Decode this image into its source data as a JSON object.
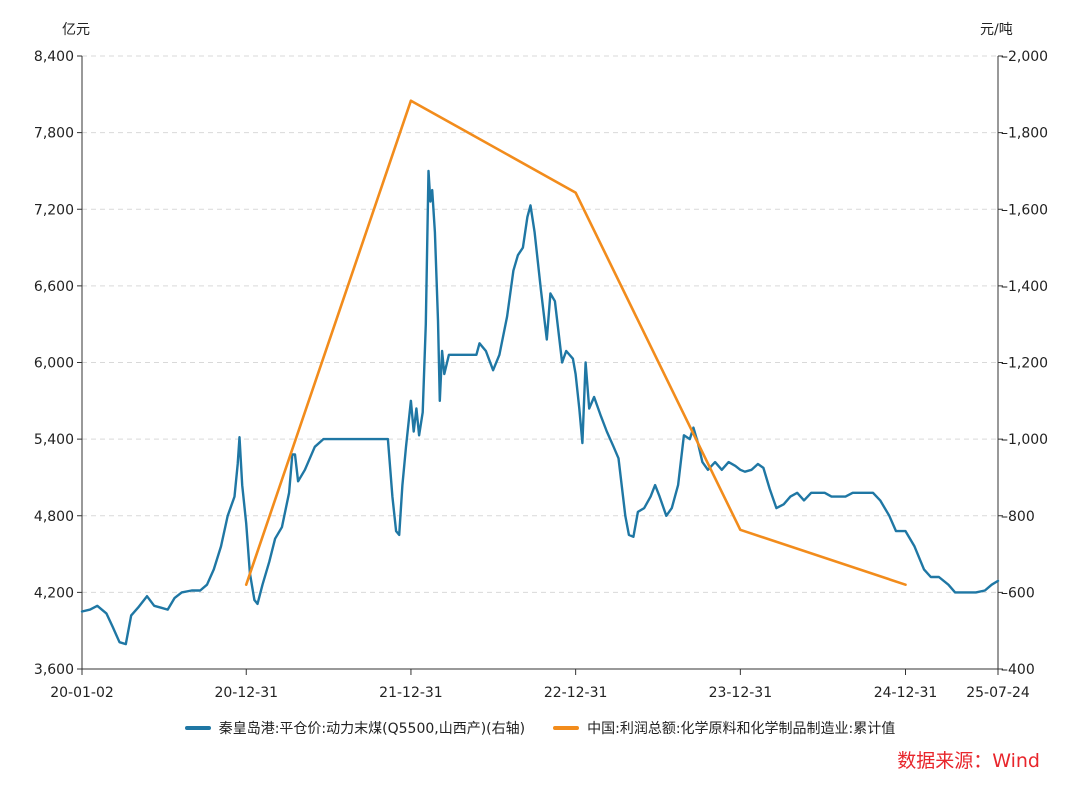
{
  "chart_data": {
    "type": "line",
    "left_unit": "亿元",
    "right_unit": "元/吨",
    "y_left": {
      "ticks": [
        "8,400",
        "7,800",
        "7,200",
        "6,600",
        "6,000",
        "5,400",
        "4,800",
        "4,200",
        "3,600"
      ],
      "range": [
        3600,
        8400
      ]
    },
    "y_right": {
      "ticks": [
        "2,000",
        "1,800",
        "1,600",
        "1,400",
        "1,200",
        "1,000",
        "800",
        "600",
        "400"
      ],
      "range": [
        400,
        2000
      ]
    },
    "x_ticks": [
      "20-01-02",
      "20-12-31",
      "21-12-31",
      "22-12-31",
      "23-12-31",
      "24-12-31",
      "25-07-24"
    ],
    "grid": true,
    "legend_position": "bottom",
    "series": [
      {
        "name": "秦皇岛港:平仓价:动力末煤(Q5500,山西产)(右轴)",
        "axis": "right",
        "color": "#1f77a4",
        "points": [
          [
            "2020-01-02",
            550
          ],
          [
            "2020-01-20",
            555
          ],
          [
            "2020-02-05",
            565
          ],
          [
            "2020-02-25",
            545
          ],
          [
            "2020-03-10",
            510
          ],
          [
            "2020-03-25",
            470
          ],
          [
            "2020-04-08",
            465
          ],
          [
            "2020-04-20",
            540
          ],
          [
            "2020-05-05",
            560
          ],
          [
            "2020-05-25",
            590
          ],
          [
            "2020-06-10",
            565
          ],
          [
            "2020-06-25",
            560
          ],
          [
            "2020-07-10",
            555
          ],
          [
            "2020-07-25",
            585
          ],
          [
            "2020-08-10",
            600
          ],
          [
            "2020-09-01",
            605
          ],
          [
            "2020-09-20",
            605
          ],
          [
            "2020-10-05",
            620
          ],
          [
            "2020-10-20",
            660
          ],
          [
            "2020-11-05",
            720
          ],
          [
            "2020-11-20",
            800
          ],
          [
            "2020-12-05",
            850
          ],
          [
            "2020-12-12",
            935
          ],
          [
            "2020-12-16",
            1005
          ],
          [
            "2020-12-22",
            880
          ],
          [
            "2020-12-31",
            780
          ],
          [
            "2021-01-08",
            650
          ],
          [
            "2021-01-18",
            580
          ],
          [
            "2021-01-25",
            570
          ],
          [
            "2021-02-05",
            620
          ],
          [
            "2021-02-20",
            680
          ],
          [
            "2021-03-05",
            740
          ],
          [
            "2021-03-20",
            770
          ],
          [
            "2021-04-05",
            860
          ],
          [
            "2021-04-12",
            960
          ],
          [
            "2021-04-18",
            960
          ],
          [
            "2021-04-25",
            890
          ],
          [
            "2021-05-10",
            920
          ],
          [
            "2021-06-01",
            980
          ],
          [
            "2021-06-20",
            1000
          ],
          [
            "2021-07-15",
            1000
          ],
          [
            "2021-08-15",
            1000
          ],
          [
            "2021-09-15",
            1000
          ],
          [
            "2021-10-15",
            1000
          ],
          [
            "2021-11-10",
            1000
          ],
          [
            "2021-11-20",
            850
          ],
          [
            "2021-11-28",
            760
          ],
          [
            "2021-12-05",
            750
          ],
          [
            "2021-12-12",
            880
          ],
          [
            "2021-12-20",
            980
          ],
          [
            "2021-12-31",
            1100
          ],
          [
            "2022-01-06",
            1020
          ],
          [
            "2022-01-12",
            1080
          ],
          [
            "2022-01-18",
            1010
          ],
          [
            "2022-01-26",
            1070
          ],
          [
            "2022-02-02",
            1300
          ],
          [
            "2022-02-08",
            1700
          ],
          [
            "2022-02-12",
            1620
          ],
          [
            "2022-02-16",
            1650
          ],
          [
            "2022-02-22",
            1540
          ],
          [
            "2022-03-01",
            1310
          ],
          [
            "2022-03-05",
            1100
          ],
          [
            "2022-03-10",
            1230
          ],
          [
            "2022-03-15",
            1170
          ],
          [
            "2022-03-25",
            1220
          ],
          [
            "2022-04-15",
            1220
          ],
          [
            "2022-05-05",
            1220
          ],
          [
            "2022-05-25",
            1220
          ],
          [
            "2022-06-01",
            1250
          ],
          [
            "2022-06-15",
            1230
          ],
          [
            "2022-07-01",
            1180
          ],
          [
            "2022-07-15",
            1220
          ],
          [
            "2022-08-01",
            1320
          ],
          [
            "2022-08-15",
            1440
          ],
          [
            "2022-08-25",
            1480
          ],
          [
            "2022-09-05",
            1500
          ],
          [
            "2022-09-15",
            1580
          ],
          [
            "2022-09-22",
            1610
          ],
          [
            "2022-10-01",
            1540
          ],
          [
            "2022-10-15",
            1390
          ],
          [
            "2022-10-28",
            1260
          ],
          [
            "2022-11-05",
            1380
          ],
          [
            "2022-11-15",
            1360
          ],
          [
            "2022-12-01",
            1200
          ],
          [
            "2022-12-10",
            1230
          ],
          [
            "2022-12-25",
            1210
          ],
          [
            "2022-12-31",
            1170
          ],
          [
            "2023-01-08",
            1080
          ],
          [
            "2023-01-15",
            990
          ],
          [
            "2023-01-22",
            1200
          ],
          [
            "2023-01-30",
            1080
          ],
          [
            "2023-02-10",
            1110
          ],
          [
            "2023-02-25",
            1060
          ],
          [
            "2023-03-10",
            1020
          ],
          [
            "2023-03-25",
            980
          ],
          [
            "2023-04-05",
            950
          ],
          [
            "2023-04-20",
            800
          ],
          [
            "2023-04-28",
            750
          ],
          [
            "2023-05-08",
            745
          ],
          [
            "2023-05-18",
            810
          ],
          [
            "2023-06-01",
            820
          ],
          [
            "2023-06-15",
            850
          ],
          [
            "2023-06-25",
            880
          ],
          [
            "2023-07-05",
            850
          ],
          [
            "2023-07-20",
            800
          ],
          [
            "2023-08-01",
            820
          ],
          [
            "2023-08-15",
            880
          ],
          [
            "2023-08-28",
            1010
          ],
          [
            "2023-09-10",
            1000
          ],
          [
            "2023-09-18",
            1030
          ],
          [
            "2023-09-28",
            990
          ],
          [
            "2023-10-08",
            940
          ],
          [
            "2023-10-20",
            920
          ],
          [
            "2023-11-05",
            940
          ],
          [
            "2023-11-20",
            920
          ],
          [
            "2023-12-05",
            940
          ],
          [
            "2023-12-20",
            930
          ],
          [
            "2023-12-31",
            920
          ],
          [
            "2024-01-10",
            915
          ],
          [
            "2024-01-25",
            920
          ],
          [
            "2024-02-08",
            935
          ],
          [
            "2024-02-20",
            925
          ],
          [
            "2024-03-05",
            870
          ],
          [
            "2024-03-20",
            820
          ],
          [
            "2024-04-05",
            830
          ],
          [
            "2024-04-20",
            850
          ],
          [
            "2024-05-05",
            860
          ],
          [
            "2024-05-20",
            840
          ],
          [
            "2024-06-05",
            860
          ],
          [
            "2024-06-20",
            860
          ],
          [
            "2024-07-05",
            860
          ],
          [
            "2024-07-20",
            850
          ],
          [
            "2024-08-05",
            850
          ],
          [
            "2024-08-20",
            850
          ],
          [
            "2024-09-05",
            860
          ],
          [
            "2024-09-20",
            860
          ],
          [
            "2024-10-05",
            860
          ],
          [
            "2024-10-20",
            860
          ],
          [
            "2024-11-05",
            840
          ],
          [
            "2024-11-25",
            800
          ],
          [
            "2024-12-10",
            760
          ],
          [
            "2024-12-31",
            760
          ],
          [
            "2025-01-20",
            720
          ],
          [
            "2025-02-10",
            660
          ],
          [
            "2025-02-25",
            640
          ],
          [
            "2025-03-15",
            640
          ],
          [
            "2025-04-05",
            620
          ],
          [
            "2025-04-20",
            600
          ],
          [
            "2025-05-10",
            600
          ],
          [
            "2025-06-05",
            600
          ],
          [
            "2025-06-25",
            605
          ],
          [
            "2025-07-10",
            620
          ],
          [
            "2025-07-24",
            630
          ]
        ]
      },
      {
        "name": "中国:利润总额:化学原料和化学制品制造业:累计值",
        "axis": "left",
        "color": "#f28c1c",
        "points": [
          [
            "2020-12-31",
            4260
          ],
          [
            "2021-12-31",
            8050
          ],
          [
            "2022-12-31",
            7330
          ],
          [
            "2023-12-31",
            4690
          ],
          [
            "2024-12-31",
            4260
          ]
        ]
      }
    ]
  },
  "source_label": "数据来源：Wind"
}
